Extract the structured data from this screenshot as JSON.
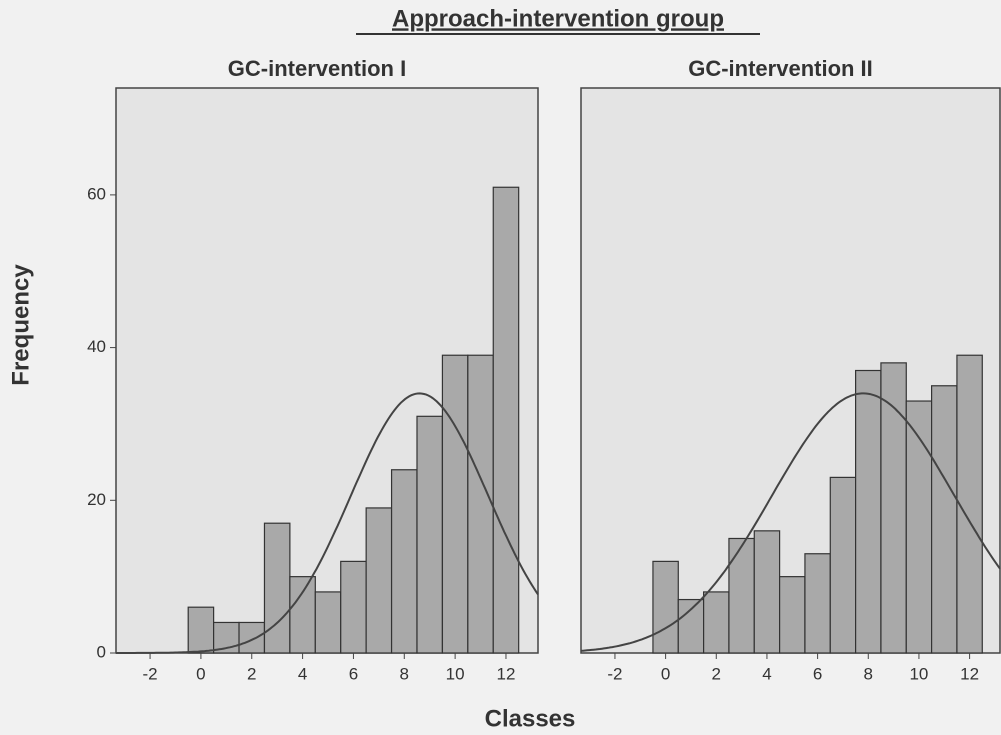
{
  "title": "Approach-intervention group",
  "x_label": "Classes",
  "y_label": "Frequency",
  "chart_data": [
    {
      "type": "histogram",
      "title": "GC-intervention I",
      "bins": [
        -0.5,
        0.5,
        1.5,
        2.5,
        3.5,
        4.5,
        5.5,
        6.5,
        7.5,
        8.5,
        9.5,
        10.5,
        11.5,
        12.5
      ],
      "counts": [
        6,
        4,
        4,
        17,
        10,
        8,
        12,
        19,
        24,
        31,
        39,
        39,
        61
      ],
      "curve": {
        "mean": 8.6,
        "sd": 2.7,
        "peak": 34
      },
      "xlim": [
        -3.34,
        13.26
      ],
      "ylim": [
        0,
        74
      ],
      "xticks": [
        -2,
        0,
        2,
        4,
        6,
        8,
        10,
        12
      ],
      "yticks": [
        0,
        20,
        40,
        60
      ]
    },
    {
      "type": "histogram",
      "title": "GC-intervention II",
      "bins": [
        -0.5,
        0.5,
        1.5,
        2.5,
        3.5,
        4.5,
        5.5,
        6.5,
        7.5,
        8.5,
        9.5,
        10.5,
        11.5,
        12.5
      ],
      "counts": [
        12,
        7,
        8,
        15,
        16,
        10,
        13,
        23,
        37,
        38,
        33,
        35,
        39
      ],
      "curve": {
        "mean": 7.8,
        "sd": 3.6,
        "peak": 34
      },
      "xlim": [
        -3.34,
        13.2
      ],
      "ylim": [
        0,
        74
      ],
      "xticks": [
        -2,
        0,
        2,
        4,
        6,
        8,
        10,
        12
      ]
    }
  ]
}
